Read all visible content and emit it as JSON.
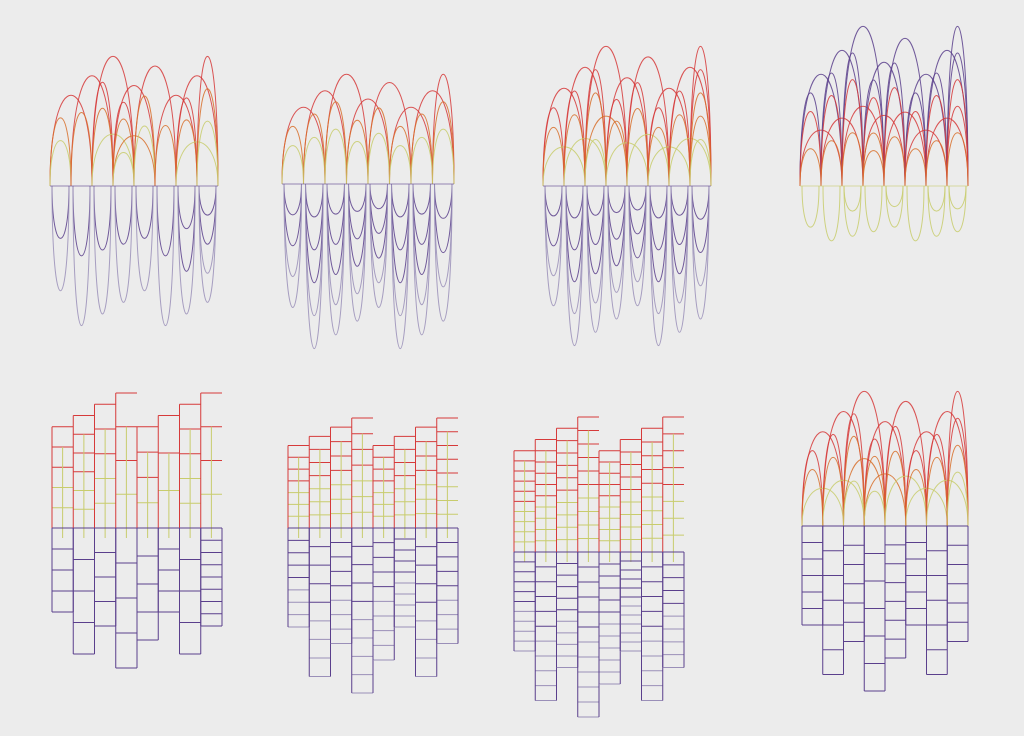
{
  "colors": {
    "background": "#ececec",
    "red": "#d63a3a",
    "orange": "#d8702c",
    "olive": "#c8cc6c",
    "purple": "#5a3f8c",
    "lavender": "#9a8fb8"
  },
  "panels": [
    {
      "id": "arcs-1",
      "type": "arcs",
      "columns": 8,
      "upper_levels": [
        3,
        2,
        4,
        5,
        3,
        2,
        4,
        3
      ],
      "lower_levels": [
        2,
        2,
        2,
        2,
        2,
        2,
        3,
        4
      ],
      "upper_palette": [
        "red",
        "orange",
        "olive"
      ],
      "lower_palette": [
        "purple",
        "lavender"
      ]
    },
    {
      "id": "arcs-2",
      "type": "arcs",
      "columns": 8,
      "upper_levels": [
        3,
        3,
        3,
        3,
        3,
        3,
        3,
        3
      ],
      "lower_levels": [
        4,
        5,
        5,
        5,
        5,
        5,
        5,
        4
      ],
      "upper_palette": [
        "red",
        "orange",
        "olive"
      ],
      "lower_palette": [
        "purple",
        "lavender"
      ]
    },
    {
      "id": "arcs-3",
      "type": "arcs",
      "columns": 8,
      "upper_levels": [
        4,
        4,
        5,
        4,
        4,
        4,
        4,
        5
      ],
      "lower_levels": [
        4,
        5,
        5,
        5,
        5,
        5,
        5,
        4
      ],
      "upper_palette": [
        "red",
        "orange",
        "olive"
      ],
      "lower_palette": [
        "purple",
        "lavender"
      ]
    },
    {
      "id": "arcs-4",
      "type": "arcs",
      "columns": 8,
      "upper_levels": [
        5,
        5,
        5,
        6,
        5,
        5,
        5,
        5
      ],
      "lower_levels": [
        1,
        1,
        2,
        1,
        2,
        1,
        2,
        2
      ],
      "upper_palette": [
        "purple",
        "red",
        "orange"
      ],
      "lower_palette": [
        "olive"
      ]
    },
    {
      "id": "grid-1",
      "type": "grid",
      "columns": 8,
      "upper_levels": [
        5,
        6,
        5,
        4,
        4,
        3,
        5,
        4
      ],
      "lower_levels": [
        4,
        4,
        4,
        4,
        4,
        4,
        4,
        8
      ],
      "upper_palette": [
        "red",
        "olive"
      ],
      "lower_palette": [
        "purple"
      ]
    },
    {
      "id": "grid-2",
      "type": "grid",
      "columns": 8,
      "upper_levels": [
        7,
        7,
        7,
        7,
        7,
        7,
        7,
        8
      ],
      "lower_levels": [
        8,
        8,
        8,
        9,
        9,
        9,
        8,
        8
      ],
      "upper_palette": [
        "red",
        "olive"
      ],
      "lower_palette": [
        "purple",
        "lavender"
      ]
    },
    {
      "id": "grid-3",
      "type": "grid",
      "columns": 8,
      "upper_levels": [
        10,
        10,
        10,
        10,
        9,
        9,
        9,
        8
      ],
      "lower_levels": [
        10,
        10,
        10,
        11,
        11,
        11,
        10,
        9
      ],
      "upper_palette": [
        "red",
        "olive"
      ],
      "lower_palette": [
        "purple",
        "lavender"
      ]
    },
    {
      "id": "hybrid-1",
      "type": "hybrid",
      "columns": 8,
      "upper_levels": [
        4,
        4,
        5,
        5,
        4,
        4,
        4,
        4
      ],
      "lower_levels": [
        6,
        6,
        6,
        6,
        7,
        6,
        6,
        6
      ],
      "upper_palette": [
        "red",
        "orange",
        "olive"
      ],
      "lower_palette": [
        "purple"
      ]
    }
  ]
}
